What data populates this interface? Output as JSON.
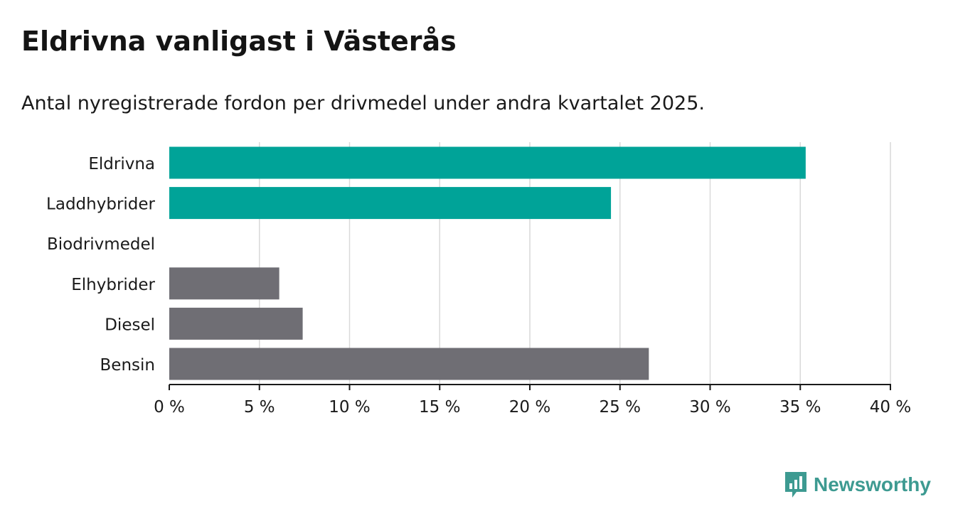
{
  "title": "Eldrivna vanligast i Västerås",
  "subtitle": "Antal nyregistrerade fordon per drivmedel under andra kvartalet 2025.",
  "logo": {
    "text": "Newsworthy",
    "icon": "newsworthy-logo-icon",
    "color": "#3d9a91"
  },
  "chart_data": {
    "type": "bar",
    "orientation": "horizontal",
    "categories": [
      "Eldrivna",
      "Laddhybrider",
      "Biodrivmedel",
      "Elhybrider",
      "Diesel",
      "Bensin"
    ],
    "values": [
      35.3,
      24.5,
      0,
      6.1,
      7.4,
      26.6
    ],
    "colors": [
      "#00a398",
      "#00a398",
      "#00a398",
      "#6f6e74",
      "#6f6e74",
      "#6f6e74"
    ],
    "xlim": [
      0,
      40
    ],
    "xticks": [
      0,
      5,
      10,
      15,
      20,
      25,
      30,
      35,
      40
    ],
    "tick_labels": [
      "0 %",
      "5 %",
      "10 %",
      "15 %",
      "20 %",
      "25 %",
      "30 %",
      "35 %",
      "40 %"
    ],
    "xlabel": "",
    "ylabel": "",
    "grid": true,
    "legend": "none"
  }
}
